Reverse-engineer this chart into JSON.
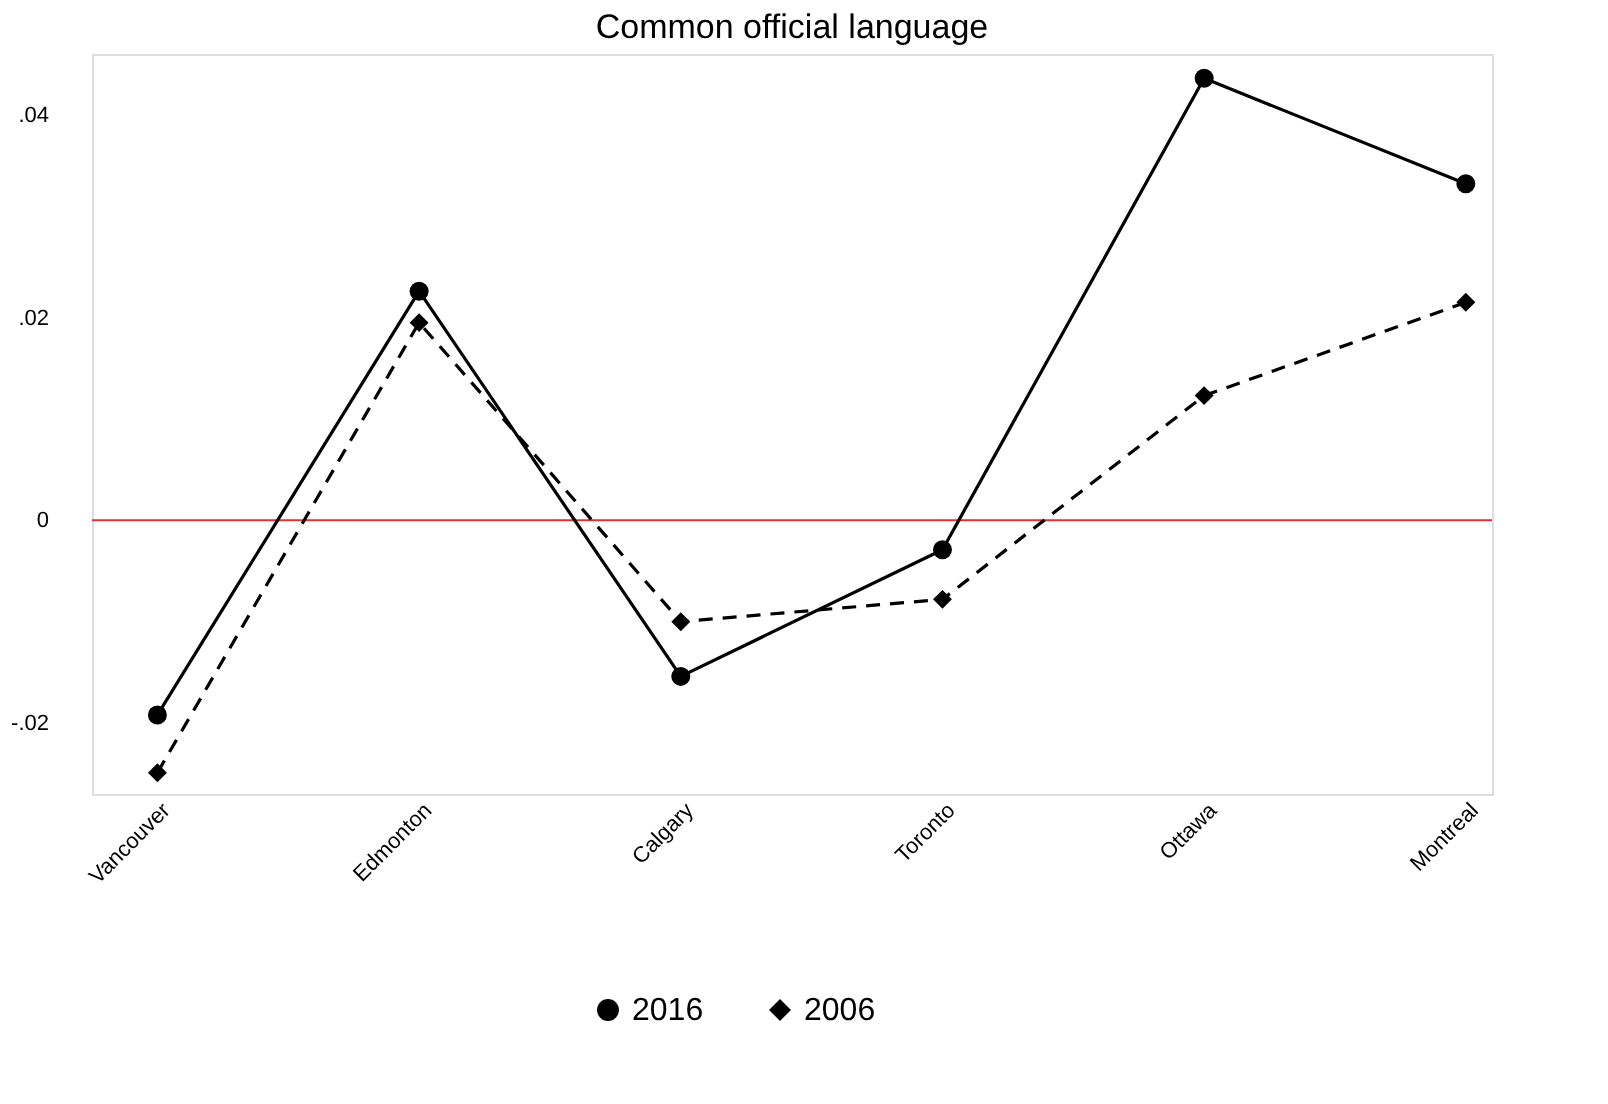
{
  "chart_data": {
    "type": "line",
    "title": "Common official language",
    "categories": [
      "Vancouver",
      "Edmonton",
      "Calgary",
      "Toronto",
      "Ottawa",
      "Montreal"
    ],
    "series": [
      {
        "name": "2016",
        "color": "#000000",
        "marker": "circle",
        "line_style": "solid",
        "values": [
          -0.0192,
          0.0226,
          -0.0154,
          -0.0029,
          0.0436,
          0.0332
        ]
      },
      {
        "name": "2006",
        "color": "#000000",
        "marker": "diamond",
        "line_style": "dashed",
        "values": [
          -0.0249,
          0.0195,
          -0.01,
          -0.0078,
          0.0123,
          0.0215
        ]
      }
    ],
    "ylim": [
      -0.027,
      0.046
    ],
    "yticks": [
      {
        "value": -0.02,
        "label": "-.02"
      },
      0,
      {
        "value": 0.02,
        "label": ".02"
      },
      {
        "value": 0.04,
        "label": ".04"
      }
    ],
    "ref_lines": [
      {
        "axis": "y",
        "value": 0,
        "color": "#e03030"
      }
    ],
    "grid": false,
    "legend": "bottom"
  }
}
